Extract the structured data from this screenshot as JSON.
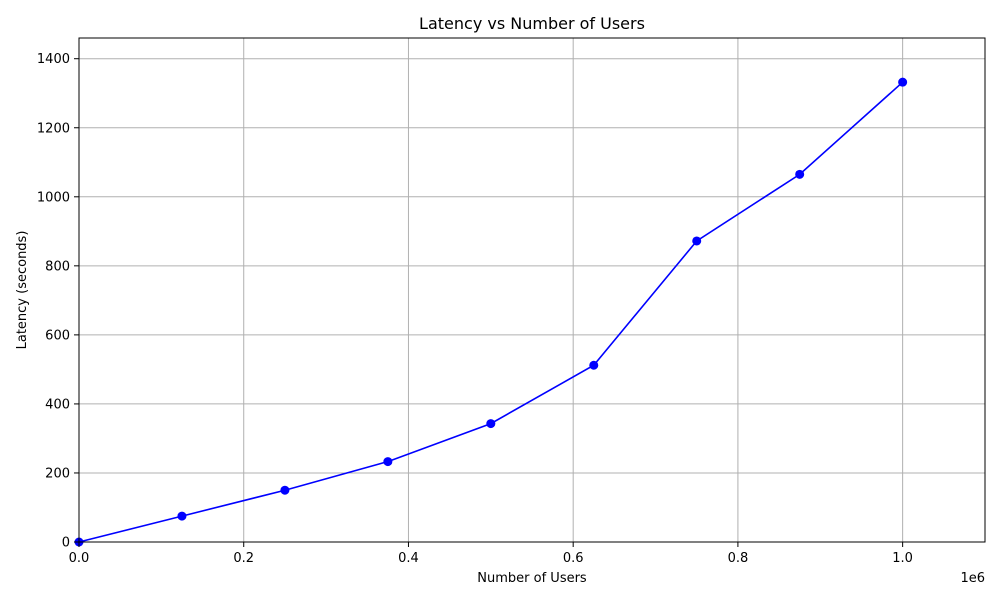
{
  "chart_data": {
    "type": "line",
    "title": "Latency vs Number of Users",
    "xlabel": "Number of Users",
    "ylabel": "Latency (seconds)",
    "x_offset_label": "1e6",
    "xlim": [
      0,
      1100000
    ],
    "ylim": [
      0,
      1460
    ],
    "xticks": [
      0,
      200000,
      400000,
      600000,
      800000,
      1000000
    ],
    "xtick_labels": [
      "0.0",
      "0.2",
      "0.4",
      "0.6",
      "0.8",
      "1.0"
    ],
    "yticks": [
      0,
      200,
      400,
      600,
      800,
      1000,
      1200,
      1400
    ],
    "ytick_labels": [
      "0",
      "200",
      "400",
      "600",
      "800",
      "1000",
      "1200",
      "1400"
    ],
    "grid": true,
    "series": [
      {
        "color": "#0000ff",
        "marker": "circle",
        "x": [
          0,
          125000,
          250000,
          375000,
          500000,
          625000,
          750000,
          875000,
          1000000
        ],
        "y": [
          0,
          75,
          150,
          233,
          343,
          512,
          872,
          1065,
          1332
        ]
      }
    ]
  }
}
